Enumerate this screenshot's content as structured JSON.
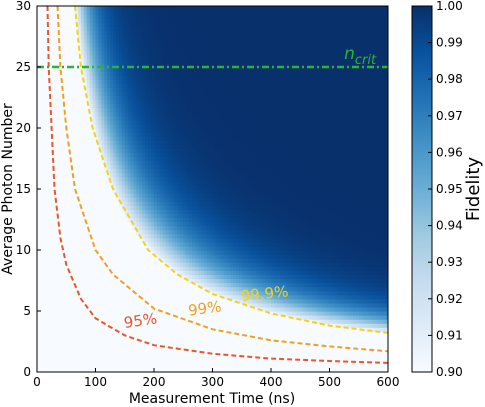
{
  "chart_data": {
    "type": "heatmap",
    "xlabel": "Measurement Time (ns)",
    "ylabel": "Average Photon Number",
    "xlim": [
      0,
      600
    ],
    "ylim": [
      0,
      30
    ],
    "xticks": [
      "0",
      "100",
      "200",
      "300",
      "400",
      "500",
      "600"
    ],
    "yticks": [
      "0",
      "5",
      "10",
      "15",
      "20",
      "25",
      "30"
    ],
    "colorbar": {
      "label": "Fidelity",
      "range": [
        0.9,
        1.0
      ],
      "ticks": [
        "0.90",
        "0.91",
        "0.92",
        "0.93",
        "0.94",
        "0.95",
        "0.96",
        "0.97",
        "0.98",
        "0.99",
        "1.00"
      ],
      "colormap": [
        "#f7fbff",
        "#deebf7",
        "#c6dbef",
        "#9ecae1",
        "#6baed6",
        "#4292c6",
        "#2171b5",
        "#08519c",
        "#08306b"
      ]
    },
    "contours": [
      {
        "label": "95%",
        "color": "#e8562a",
        "points": [
          [
            18,
            30
          ],
          [
            20,
            25
          ],
          [
            25,
            20
          ],
          [
            30,
            15
          ],
          [
            40,
            11
          ],
          [
            50,
            8.8
          ],
          [
            75,
            6
          ],
          [
            100,
            4.4
          ],
          [
            150,
            3
          ],
          [
            200,
            2.2
          ],
          [
            300,
            1.5
          ],
          [
            400,
            1.1
          ],
          [
            500,
            0.9
          ],
          [
            600,
            0.75
          ]
        ],
        "label_pos": [
          178,
          3.8
        ],
        "label_rotate": -8
      },
      {
        "label": "99%",
        "color": "#f0a020",
        "points": [
          [
            35,
            30
          ],
          [
            40,
            25
          ],
          [
            50,
            20
          ],
          [
            65,
            15
          ],
          [
            100,
            10
          ],
          [
            130,
            8
          ],
          [
            200,
            5.2
          ],
          [
            300,
            3.5
          ],
          [
            400,
            2.6
          ],
          [
            500,
            2.1
          ],
          [
            600,
            1.7
          ]
        ],
        "label_pos": [
          288,
          4.8
        ],
        "label_rotate": -8
      },
      {
        "label": "99.9%",
        "color": "#f2d21c",
        "points": [
          [
            65,
            30
          ],
          [
            75,
            25
          ],
          [
            95,
            20
          ],
          [
            130,
            15
          ],
          [
            190,
            10
          ],
          [
            240,
            8
          ],
          [
            300,
            6.4
          ],
          [
            400,
            4.8
          ],
          [
            500,
            3.8
          ],
          [
            600,
            3.2
          ]
        ],
        "label_pos": [
          390,
          6.0
        ],
        "label_rotate": -6
      }
    ],
    "reference_line": {
      "label": "n_crit",
      "label_main": "n",
      "label_sub": "crit",
      "y": 25,
      "color": "#2db32d"
    }
  }
}
